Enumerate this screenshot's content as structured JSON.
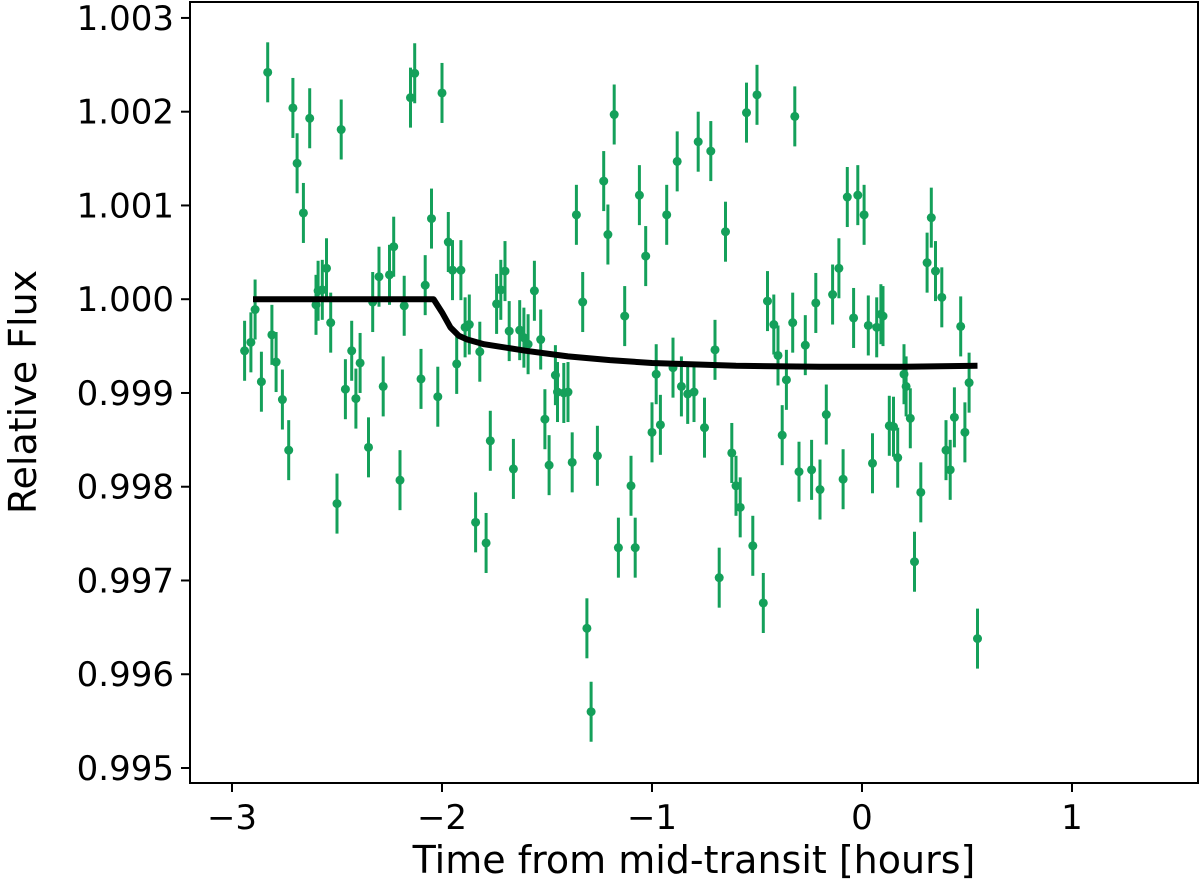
{
  "chart_data": {
    "type": "scatter",
    "xlabel": "Time from mid-transit [hours]",
    "ylabel": "Relative Flux",
    "xlim": [
      -3.2,
      1.6
    ],
    "ylim": [
      0.99484,
      1.00317
    ],
    "xticks": [
      {
        "value": -3,
        "label": "−3"
      },
      {
        "value": -2,
        "label": "−2"
      },
      {
        "value": -1,
        "label": "−1"
      },
      0,
      1
    ],
    "yticks": [
      0.995,
      0.996,
      0.997,
      0.998,
      0.999,
      {
        "value": 1,
        "label": "1.000"
      },
      1.001,
      1.002,
      1.003
    ],
    "grid": false,
    "series": [
      {
        "mode": "errorbar",
        "color": "#14a05a",
        "yerr": 0.00032,
        "x": [
          -2.94,
          -2.91,
          -2.89,
          -2.86,
          -2.83,
          -2.81,
          -2.79,
          -2.76,
          -2.73,
          -2.71,
          -2.69,
          -2.66,
          -2.63,
          -2.6,
          -2.59,
          -2.57,
          -2.55,
          -2.53,
          -2.5,
          -2.48,
          -2.46,
          -2.43,
          -2.41,
          -2.39,
          -2.35,
          -2.33,
          -2.3,
          -2.28,
          -2.25,
          -2.23,
          -2.2,
          -2.18,
          -2.15,
          -2.13,
          -2.1,
          -2.08,
          -2.05,
          -2.02,
          -2.0,
          -1.97,
          -1.95,
          -1.93,
          -1.91,
          -1.89,
          -1.87,
          -1.84,
          -1.82,
          -1.79,
          -1.77,
          -1.74,
          -1.72,
          -1.7,
          -1.68,
          -1.66,
          -1.63,
          -1.61,
          -1.59,
          -1.56,
          -1.53,
          -1.51,
          -1.49,
          -1.46,
          -1.45,
          -1.42,
          -1.4,
          -1.38,
          -1.36,
          -1.33,
          -1.31,
          -1.29,
          -1.26,
          -1.23,
          -1.21,
          -1.18,
          -1.16,
          -1.13,
          -1.1,
          -1.08,
          -1.06,
          -1.03,
          -1.0,
          -0.98,
          -0.96,
          -0.93,
          -0.9,
          -0.88,
          -0.86,
          -0.83,
          -0.8,
          -0.78,
          -0.75,
          -0.72,
          -0.7,
          -0.68,
          -0.65,
          -0.62,
          -0.6,
          -0.58,
          -0.55,
          -0.52,
          -0.5,
          -0.47,
          -0.45,
          -0.42,
          -0.4,
          -0.38,
          -0.36,
          -0.33,
          -0.32,
          -0.3,
          -0.27,
          -0.24,
          -0.22,
          -0.2,
          -0.17,
          -0.14,
          -0.11,
          -0.09,
          -0.07,
          -0.04,
          -0.02,
          0.01,
          0.03,
          0.05,
          0.07,
          0.09,
          0.1,
          0.13,
          0.15,
          0.17,
          0.2,
          0.21,
          0.23,
          0.25,
          0.28,
          0.31,
          0.33,
          0.35,
          0.38,
          0.4,
          0.42,
          0.44,
          0.47,
          0.49,
          0.51,
          0.55
        ],
        "values": [
          0.99945,
          0.99954,
          0.99989,
          0.99912,
          1.00242,
          0.99962,
          0.99933,
          0.99893,
          0.99839,
          1.00204,
          1.00145,
          1.00092,
          1.00193,
          0.99994,
          1.00009,
          1.0001,
          1.00033,
          0.99975,
          0.99782,
          1.00181,
          0.99904,
          0.99945,
          0.99894,
          0.99932,
          0.99842,
          0.99997,
          1.00024,
          0.99907,
          1.00026,
          1.00056,
          0.99807,
          0.99993,
          1.00215,
          1.00241,
          0.99915,
          1.00015,
          1.00086,
          0.99896,
          1.0022,
          1.00061,
          1.00031,
          0.99931,
          1.00031,
          0.9997,
          0.99973,
          0.99762,
          0.99944,
          0.9974,
          0.99849,
          0.99995,
          1.0001,
          1.0003,
          0.99966,
          0.99819,
          0.99967,
          0.99959,
          0.99952,
          1.00009,
          0.99957,
          0.99872,
          0.99823,
          0.99919,
          0.99901,
          0.999,
          0.99901,
          0.99826,
          1.0009,
          0.99997,
          0.99649,
          0.9956,
          0.99833,
          1.00126,
          1.00069,
          1.00197,
          0.99735,
          0.99982,
          0.99801,
          0.99735,
          1.00111,
          1.00046,
          0.99858,
          0.9992,
          0.99866,
          1.0009,
          0.99927,
          1.00147,
          0.99907,
          0.99899,
          0.99901,
          1.00168,
          0.99863,
          1.00158,
          0.99946,
          0.99703,
          1.00072,
          0.99836,
          0.99801,
          0.99778,
          1.00199,
          0.99737,
          1.00218,
          0.99676,
          0.99998,
          0.99973,
          0.9994,
          0.99855,
          0.99914,
          0.99975,
          1.00195,
          0.99816,
          0.99951,
          0.99818,
          0.99996,
          0.99797,
          0.99877,
          1.00005,
          1.00033,
          0.99808,
          1.00109,
          0.9998,
          1.00111,
          1.0009,
          0.99972,
          0.99825,
          0.9997,
          0.99984,
          0.99982,
          0.99865,
          0.99864,
          0.99831,
          0.9992,
          0.99907,
          0.99873,
          0.9972,
          0.99794,
          1.00039,
          1.00087,
          1.0003,
          1.00002,
          0.99839,
          0.99818,
          0.99874,
          0.99971,
          0.99858,
          0.99911,
          0.99638
        ]
      },
      {
        "mode": "line",
        "color": "#000000",
        "x": [
          -2.9,
          -2.5,
          -2.1,
          -2.04,
          -2.0,
          -1.96,
          -1.92,
          -1.88,
          -1.8,
          -1.6,
          -1.4,
          -1.2,
          -1.0,
          -0.6,
          -0.2,
          0.2,
          0.55
        ],
        "values": [
          1.0,
          1.0,
          1.0,
          1.0,
          0.99986,
          0.9997,
          0.99961,
          0.99957,
          0.99952,
          0.99945,
          0.99939,
          0.99935,
          0.99932,
          0.99929,
          0.99928,
          0.99928,
          0.99929
        ]
      }
    ]
  }
}
